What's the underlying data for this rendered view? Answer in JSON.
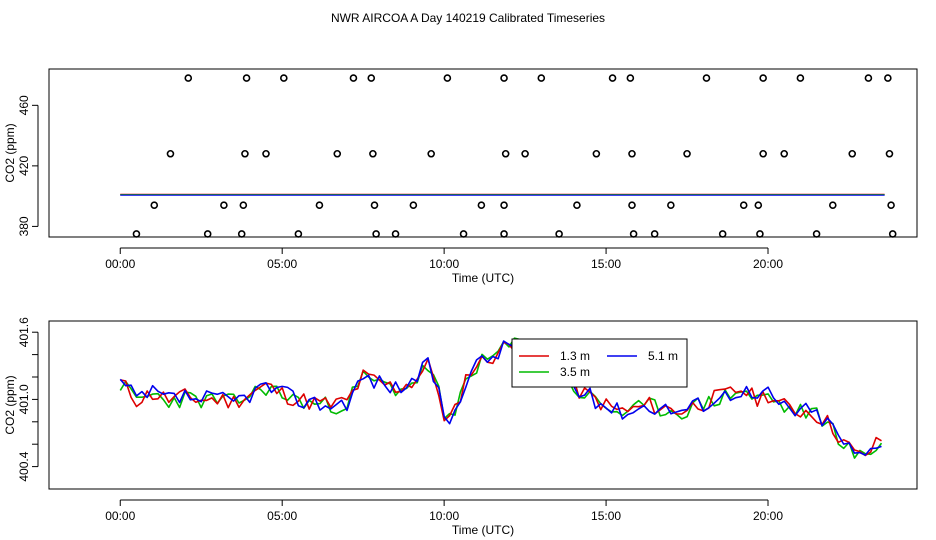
{
  "page_title": "NWR AIRCOA A  Day 140219  Calibrated Timeseries",
  "chart_data": [
    {
      "type": "scatter",
      "xlabel": "Time (UTC)",
      "ylabel": "CO2 (ppm)",
      "xlim": [
        -2.2,
        24.6
      ],
      "ylim": [
        373,
        484
      ],
      "x_ticks": [
        0,
        5,
        10,
        15,
        20
      ],
      "x_tick_labels": [
        "00:00",
        "05:00",
        "10:00",
        "15:00",
        "20:00"
      ],
      "y_ticks": [
        380,
        420,
        460
      ],
      "y_tick_labels": [
        "380",
        "420",
        "460"
      ],
      "grid": false,
      "legend": "none",
      "markers": {
        "color": "#000000",
        "shape": "open-circle",
        "x_hours": [
          2.1,
          3.9,
          5.05,
          7.2,
          7.75,
          10.1,
          11.85,
          13.0,
          15.2,
          15.75,
          18.1,
          19.85,
          21.0,
          23.1,
          23.7,
          1.55,
          3.85,
          4.5,
          6.7,
          7.8,
          9.6,
          11.9,
          12.5,
          14.7,
          15.8,
          17.5,
          19.85,
          20.5,
          22.6,
          23.75,
          1.05,
          3.2,
          3.8,
          6.15,
          7.85,
          9.05,
          11.15,
          11.85,
          14.1,
          15.8,
          17.0,
          19.25,
          19.7,
          22.0,
          23.8,
          0.5,
          2.7,
          3.75,
          5.5,
          7.9,
          8.5,
          10.6,
          11.85,
          13.55,
          15.85,
          16.5,
          18.6,
          19.75,
          21.5,
          23.85
        ],
        "y_levels_ppm": [
          478,
          478,
          478,
          478,
          478,
          478,
          478,
          478,
          478,
          478,
          478,
          478,
          478,
          478,
          478,
          428,
          428,
          428,
          428,
          428,
          428,
          428,
          428,
          428,
          428,
          428,
          428,
          428,
          428,
          428,
          394,
          394,
          394,
          394,
          394,
          394,
          394,
          394,
          394,
          394,
          394,
          394,
          394,
          394,
          394,
          375,
          375,
          375,
          375,
          375,
          375,
          375,
          375,
          375,
          375,
          375,
          375,
          375,
          375,
          375
        ]
      },
      "flat_series": {
        "colors": [
          "#dd0000",
          "#00bb00",
          "#0000ee"
        ],
        "x_range_hours": [
          0,
          23.6
        ],
        "value_ppm": 400.9
      }
    },
    {
      "type": "line",
      "xlabel": "Time (UTC)",
      "ylabel": "CO2 (ppm)",
      "xlim": [
        -2.2,
        24.6
      ],
      "ylim": [
        400.2,
        401.7
      ],
      "x_ticks": [
        0,
        5,
        10,
        15,
        20
      ],
      "x_tick_labels": [
        "00:00",
        "05:00",
        "10:00",
        "15:00",
        "20:00"
      ],
      "y_ticks": [
        400.4,
        400.6,
        400.8,
        401.0,
        401.2,
        401.4,
        401.6
      ],
      "y_tick_labels": [
        "400.4",
        "",
        "",
        "401.0",
        "",
        "",
        "401.6"
      ],
      "grid": false,
      "legend": "top-center",
      "legend_boxed": true,
      "categories": [],
      "x_start_hour": 0,
      "x_step_hours": 0.1667,
      "anchors": [
        [
          0.0,
          401.15
        ],
        [
          0.5,
          401.0
        ],
        [
          1.0,
          401.05
        ],
        [
          1.5,
          401.0
        ],
        [
          2.0,
          401.02
        ],
        [
          2.5,
          401.0
        ],
        [
          3.0,
          401.0
        ],
        [
          3.5,
          400.98
        ],
        [
          4.0,
          401.05
        ],
        [
          4.5,
          401.12
        ],
        [
          5.0,
          401.05
        ],
        [
          5.5,
          401.0
        ],
        [
          6.0,
          400.97
        ],
        [
          6.5,
          400.95
        ],
        [
          7.0,
          400.98
        ],
        [
          7.5,
          401.2
        ],
        [
          8.0,
          401.15
        ],
        [
          8.5,
          401.1
        ],
        [
          9.0,
          401.15
        ],
        [
          9.5,
          401.3
        ],
        [
          9.8,
          401.15
        ],
        [
          10.0,
          400.78
        ],
        [
          10.3,
          400.85
        ],
        [
          10.6,
          401.15
        ],
        [
          10.9,
          401.3
        ],
        [
          11.3,
          401.35
        ],
        [
          11.8,
          401.45
        ],
        [
          12.3,
          401.52
        ],
        [
          12.8,
          401.35
        ],
        [
          13.3,
          401.3
        ],
        [
          13.8,
          401.15
        ],
        [
          14.3,
          401.05
        ],
        [
          14.8,
          400.98
        ],
        [
          15.3,
          400.9
        ],
        [
          15.8,
          400.9
        ],
        [
          16.3,
          400.95
        ],
        [
          16.8,
          400.92
        ],
        [
          17.3,
          400.9
        ],
        [
          17.8,
          400.95
        ],
        [
          18.3,
          401.0
        ],
        [
          18.8,
          401.05
        ],
        [
          19.2,
          401.1
        ],
        [
          19.6,
          401.0
        ],
        [
          20.0,
          401.05
        ],
        [
          20.4,
          400.95
        ],
        [
          20.8,
          400.9
        ],
        [
          21.2,
          400.9
        ],
        [
          21.6,
          400.85
        ],
        [
          22.0,
          400.75
        ],
        [
          22.4,
          400.6
        ],
        [
          22.8,
          400.48
        ],
        [
          23.2,
          400.55
        ],
        [
          23.6,
          400.68
        ]
      ],
      "series": [
        {
          "name": "1.3 m",
          "color": "#dd0000",
          "offset": 0.0,
          "seed": 11
        },
        {
          "name": "3.5 m",
          "color": "#00bb00",
          "offset": -0.01,
          "seed": 23
        },
        {
          "name": "5.1 m",
          "color": "#0000ee",
          "offset": 0.0,
          "seed": 37
        }
      ]
    }
  ]
}
